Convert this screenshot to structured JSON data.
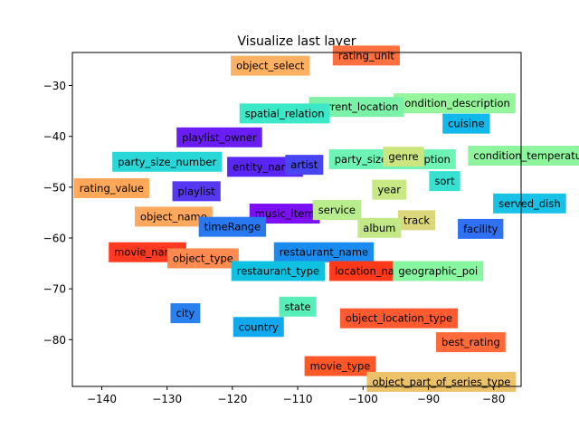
{
  "chart_data": {
    "type": "scatter",
    "title": "Visualize last layer",
    "xlabel": "",
    "ylabel": "",
    "xlim": [
      -144.5,
      -75.8
    ],
    "ylim": [
      -89.2,
      -23.5
    ],
    "xticks": [
      -140,
      -130,
      -120,
      -110,
      -100,
      -90,
      -80
    ],
    "yticks": [
      -30,
      -40,
      -50,
      -60,
      -70,
      -80
    ],
    "xtick_labels": [
      "−140",
      "−130",
      "−120",
      "−110",
      "−100",
      "−90",
      "−80"
    ],
    "ytick_labels": [
      "−30",
      "−40",
      "−50",
      "−60",
      "−70",
      "−80"
    ],
    "grid": false,
    "legend": "none",
    "points": [
      {
        "label": "rating_unit",
        "x": -99.5,
        "y": -24.1,
        "color": "#ff7040"
      },
      {
        "label": "object_select",
        "x": -114.2,
        "y": -26.1,
        "color": "#ffb060"
      },
      {
        "label": "condition_description",
        "x": -86.0,
        "y": -33.5,
        "color": "#94f59b"
      },
      {
        "label": "current_location",
        "x": -101.0,
        "y": -34.2,
        "color": "#7af3a8"
      },
      {
        "label": "spatial_relation",
        "x": -112.0,
        "y": -35.5,
        "color": "#3ce8c8"
      },
      {
        "label": "cuisine",
        "x": -84.2,
        "y": -37.5,
        "color": "#10b8ec"
      },
      {
        "label": "playlist_owner",
        "x": -122.0,
        "y": -40.2,
        "color": "#6a1ef5"
      },
      {
        "label": "condition_temperature",
        "x": -74.0,
        "y": -43.8,
        "color": "#8ef59e"
      },
      {
        "label": "party_size_number",
        "x": -130.0,
        "y": -45.0,
        "color": "#28d8d8"
      },
      {
        "label": "party_size_description",
        "x": -95.5,
        "y": -44.5,
        "color": "#6ef5b5"
      },
      {
        "label": "genre",
        "x": -93.8,
        "y": -44.0,
        "color": "#cbe67f"
      },
      {
        "label": "entity_name",
        "x": -115.0,
        "y": -46.0,
        "color": "#5a26f5"
      },
      {
        "label": "artist",
        "x": -109.0,
        "y": -45.6,
        "color": "#4846f0"
      },
      {
        "label": "sort",
        "x": -87.5,
        "y": -48.8,
        "color": "#38e0d0"
      },
      {
        "label": "rating_value",
        "x": -138.5,
        "y": -50.2,
        "color": "#ffa85a"
      },
      {
        "label": "playlist",
        "x": -125.5,
        "y": -50.8,
        "color": "#5538f0"
      },
      {
        "label": "year",
        "x": -96.0,
        "y": -50.5,
        "color": "#c8e883"
      },
      {
        "label": "served_dish",
        "x": -74.5,
        "y": -53.2,
        "color": "#18c2e6"
      },
      {
        "label": "music_item",
        "x": -112.0,
        "y": -55.2,
        "color": "#7c10f5"
      },
      {
        "label": "service",
        "x": -104.0,
        "y": -54.5,
        "color": "#b8ec8c"
      },
      {
        "label": "object_name",
        "x": -129.0,
        "y": -55.8,
        "color": "#ffa85e"
      },
      {
        "label": "track",
        "x": -91.8,
        "y": -56.5,
        "color": "#dcd67c"
      },
      {
        "label": "timeRange",
        "x": -120.0,
        "y": -57.8,
        "color": "#2a78f0"
      },
      {
        "label": "album",
        "x": -97.5,
        "y": -58.0,
        "color": "#c2e888"
      },
      {
        "label": "facility",
        "x": -82.0,
        "y": -58.2,
        "color": "#3070f2"
      },
      {
        "label": "movie_name",
        "x": -133.0,
        "y": -62.8,
        "color": "#ff3a20"
      },
      {
        "label": "restaurant_name",
        "x": -106.0,
        "y": -62.8,
        "color": "#1a8cf0"
      },
      {
        "label": "object_type",
        "x": -124.5,
        "y": -64.0,
        "color": "#ff8a50"
      },
      {
        "label": "restaurant_type",
        "x": -113.0,
        "y": -66.5,
        "color": "#10c2e2"
      },
      {
        "label": "location_name",
        "x": -98.5,
        "y": -66.5,
        "color": "#ff3a1a"
      },
      {
        "label": "geographic_poi",
        "x": -88.5,
        "y": -66.5,
        "color": "#88f5a0"
      },
      {
        "label": "state",
        "x": -110.0,
        "y": -73.5,
        "color": "#58eeb8"
      },
      {
        "label": "city",
        "x": -127.2,
        "y": -74.8,
        "color": "#2a80ee"
      },
      {
        "label": "object_location_type",
        "x": -94.5,
        "y": -75.8,
        "color": "#ff5a30"
      },
      {
        "label": "country",
        "x": -116.0,
        "y": -77.5,
        "color": "#12a8ee"
      },
      {
        "label": "best_rating",
        "x": -83.5,
        "y": -80.5,
        "color": "#ff6a3a"
      },
      {
        "label": "movie_type",
        "x": -103.5,
        "y": -85.2,
        "color": "#ff5828"
      },
      {
        "label": "object_part_of_series_type",
        "x": -88.0,
        "y": -88.3,
        "color": "#ecc26a"
      }
    ]
  }
}
